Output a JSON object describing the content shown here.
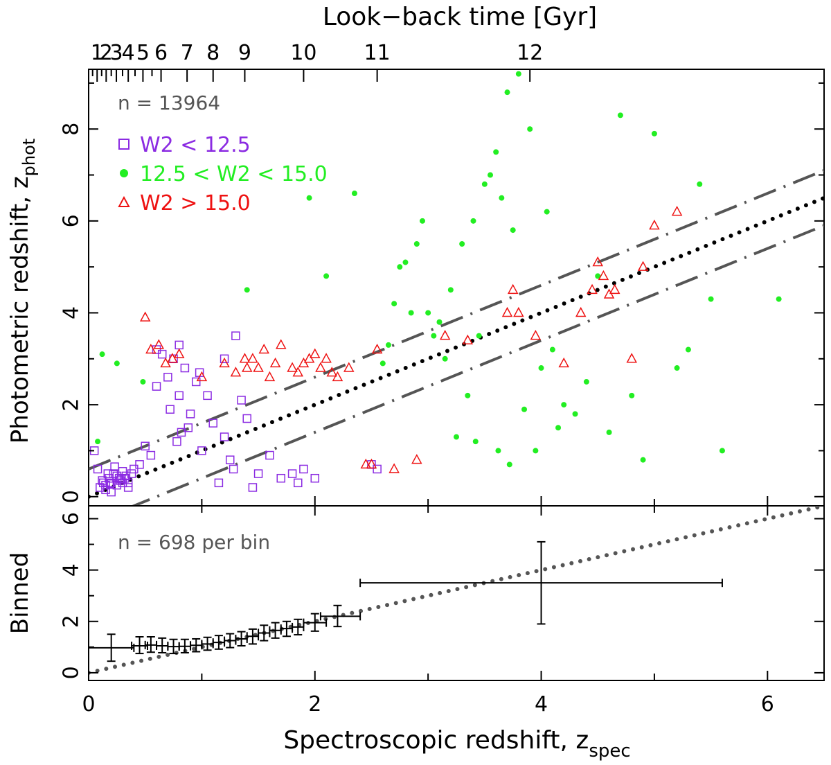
{
  "chart_data": [
    {
      "panel": "main",
      "type": "scatter",
      "xlabel": "Spectroscopic redshift, z",
      "xlabel_sub": "spec",
      "ylabel": "Photometric redshift, z",
      "ylabel_sub": "phot",
      "top_axis_label": "Look−back time [Gyr]",
      "top_axis_ticks": [
        {
          "label": "1",
          "z": 0.075
        },
        {
          "label": "2",
          "z": 0.155
        },
        {
          "label": "3",
          "z": 0.245
        },
        {
          "label": "4",
          "z": 0.35
        },
        {
          "label": "5",
          "z": 0.48
        },
        {
          "label": "6",
          "z": 0.64
        },
        {
          "label": "7",
          "z": 0.87
        },
        {
          "label": "8",
          "z": 1.1
        },
        {
          "label": "9",
          "z": 1.38
        },
        {
          "label": "10",
          "z": 1.9
        },
        {
          "label": "11",
          "z": 2.55
        },
        {
          "label": "12",
          "z": 3.9
        }
      ],
      "top_minor_z": [
        0.035,
        0.115,
        0.2,
        0.3,
        0.41,
        0.56
      ],
      "xlim": [
        0,
        6.5
      ],
      "ylim": [
        -0.2,
        9.3
      ],
      "xticks": [
        0,
        2,
        4,
        6
      ],
      "yticks": [
        0,
        2,
        4,
        6,
        8
      ],
      "ytick_labels": [
        "0",
        "2",
        "4",
        "6",
        "8"
      ],
      "annotation": "n = 13964",
      "legend": [
        {
          "label": "W2 < 12.5",
          "marker": "square",
          "color": "#8b2be2"
        },
        {
          "label": "12.5 < W2 < 15.0",
          "marker": "circle",
          "color": "#22ee22"
        },
        {
          "label": "W2 > 15.0",
          "marker": "triangle",
          "color": "#ee1111"
        }
      ],
      "lines": [
        {
          "name": "one-to-one",
          "style": "dotted",
          "color": "#000000",
          "slope": 1,
          "intercept": 0
        },
        {
          "name": "upper-bound",
          "style": "dash-dot",
          "color": "#555555",
          "slope": 1,
          "intercept": 0.6
        },
        {
          "name": "lower-bound",
          "style": "dash-dot",
          "color": "#555555",
          "slope": 1,
          "intercept": -0.6
        }
      ],
      "series": [
        {
          "name": "W2 < 12.5",
          "x": [
            0.1,
            0.12,
            0.15,
            0.18,
            0.2,
            0.22,
            0.25,
            0.28,
            0.3,
            0.32,
            0.35,
            0.38,
            0.4,
            0.15,
            0.2,
            0.25,
            0.3,
            0.35,
            0.17,
            0.23,
            0.27,
            0.33,
            0.13,
            0.19,
            0.29,
            0.6,
            0.7,
            0.75,
            0.8,
            0.85,
            0.9,
            0.95,
            0.65,
            0.78,
            0.88,
            1.0,
            1.1,
            1.2,
            1.25,
            1.3,
            1.35,
            1.4,
            1.5,
            1.6,
            1.7,
            1.9,
            0.5,
            0.55,
            0.45,
            1.15,
            1.05,
            0.98,
            0.72,
            0.82,
            1.28,
            1.45,
            1.8,
            1.85,
            2.0,
            2.5,
            2.55,
            0.05,
            0.08,
            0.6,
            0.8,
            1.2
          ],
          "y": [
            0.2,
            0.35,
            0.25,
            0.4,
            0.3,
            0.5,
            0.45,
            0.35,
            0.55,
            0.4,
            0.3,
            0.5,
            0.6,
            0.15,
            0.1,
            0.25,
            0.3,
            0.2,
            0.5,
            0.65,
            0.4,
            0.45,
            0.3,
            0.28,
            0.38,
            2.4,
            2.6,
            3.0,
            2.2,
            2.8,
            1.8,
            2.5,
            3.1,
            1.2,
            1.5,
            1.0,
            1.6,
            1.3,
            0.8,
            3.5,
            2.1,
            1.7,
            0.5,
            0.9,
            0.4,
            0.6,
            1.1,
            0.9,
            0.7,
            0.3,
            2.2,
            2.7,
            1.9,
            1.4,
            0.6,
            0.2,
            0.5,
            0.3,
            0.4,
            0.7,
            0.6,
            1.0,
            0.6,
            3.2,
            3.3,
            3.0
          ]
        },
        {
          "name": "12.5 < W2 < 15.0",
          "x": [
            0.25,
            0.48,
            0.08,
            0.12,
            2.35,
            1.4,
            2.1,
            2.7,
            2.75,
            3.0,
            3.1,
            3.2,
            3.3,
            3.4,
            3.5,
            3.6,
            3.7,
            3.8,
            3.9,
            3.65,
            3.75,
            3.55,
            3.45,
            3.35,
            3.25,
            3.15,
            4.0,
            4.1,
            4.2,
            4.3,
            4.4,
            4.5,
            4.6,
            4.7,
            4.8,
            4.9,
            5.0,
            5.2,
            5.3,
            5.4,
            5.5,
            5.6,
            6.1,
            3.85,
            3.95,
            4.05,
            4.15,
            3.72,
            3.62,
            3.42,
            2.9,
            2.95,
            1.95,
            2.8,
            2.65,
            2.85,
            3.05,
            2.6
          ],
          "y": [
            2.9,
            2.5,
            1.2,
            3.1,
            6.6,
            4.5,
            4.8,
            4.2,
            5.0,
            4.0,
            3.8,
            4.5,
            5.5,
            6.0,
            6.8,
            7.5,
            8.8,
            9.2,
            8.0,
            6.5,
            5.8,
            7.0,
            3.5,
            2.2,
            1.3,
            3.0,
            2.8,
            3.2,
            2.0,
            1.8,
            2.5,
            4.8,
            1.4,
            8.3,
            2.2,
            0.8,
            7.9,
            2.8,
            3.2,
            6.8,
            4.3,
            1.0,
            4.3,
            1.9,
            1.0,
            6.2,
            1.5,
            0.7,
            1.0,
            1.2,
            5.5,
            6.0,
            6.5,
            5.1,
            3.3,
            4.0,
            3.5,
            2.9
          ]
        },
        {
          "name": "W2 > 15.0",
          "x": [
            0.5,
            0.55,
            0.62,
            0.68,
            0.74,
            0.8,
            1.0,
            1.2,
            1.3,
            1.38,
            1.4,
            1.45,
            1.5,
            1.55,
            1.6,
            1.65,
            1.7,
            1.8,
            1.85,
            1.9,
            1.95,
            2.0,
            2.05,
            2.1,
            2.15,
            2.2,
            2.3,
            2.5,
            2.55,
            2.9,
            3.15,
            3.35,
            3.7,
            3.75,
            3.8,
            3.95,
            4.2,
            4.35,
            4.45,
            4.5,
            4.55,
            4.6,
            4.65,
            4.8,
            4.9,
            5.0,
            5.2,
            2.45,
            2.7
          ],
          "y": [
            3.9,
            3.2,
            3.3,
            2.9,
            3.0,
            3.1,
            2.6,
            2.9,
            2.7,
            3.0,
            2.8,
            3.0,
            2.8,
            3.2,
            2.6,
            2.9,
            3.3,
            2.8,
            2.7,
            2.9,
            3.0,
            3.1,
            2.8,
            3.0,
            2.7,
            2.6,
            2.8,
            0.7,
            3.2,
            0.8,
            3.5,
            3.4,
            4.0,
            4.5,
            4.0,
            3.5,
            2.9,
            4.0,
            4.5,
            5.1,
            4.8,
            4.4,
            4.5,
            3.0,
            5.0,
            5.9,
            6.2,
            0.7,
            0.6
          ]
        }
      ]
    },
    {
      "panel": "binned",
      "type": "errorbar",
      "ylabel": "Binned",
      "xlim": [
        0,
        6.5
      ],
      "ylim": [
        -0.3,
        6.5
      ],
      "xticks": [
        0,
        2,
        4,
        6
      ],
      "xtick_labels": [
        "0",
        "2",
        "4",
        "6"
      ],
      "yticks": [
        0,
        2,
        4,
        6
      ],
      "ytick_labels": [
        "0",
        "2",
        "4",
        "6"
      ],
      "annotation": "n = 698 per bin",
      "reference_line": {
        "style": "dotted",
        "color": "#555555",
        "slope": 1,
        "intercept": 0
      },
      "points": [
        {
          "x": 0.2,
          "y": 0.97,
          "xlo": 0.0,
          "xhi": 0.4,
          "ylo": 0.45,
          "yhi": 1.5
        },
        {
          "x": 0.45,
          "y": 1.05,
          "xlo": 0.38,
          "xhi": 0.52,
          "ylo": 0.75,
          "yhi": 1.4
        },
        {
          "x": 0.55,
          "y": 1.08,
          "xlo": 0.5,
          "xhi": 0.6,
          "ylo": 0.8,
          "yhi": 1.4
        },
        {
          "x": 0.65,
          "y": 1.05,
          "xlo": 0.6,
          "xhi": 0.7,
          "ylo": 0.78,
          "yhi": 1.35
        },
        {
          "x": 0.75,
          "y": 1.02,
          "xlo": 0.7,
          "xhi": 0.8,
          "ylo": 0.75,
          "yhi": 1.3
        },
        {
          "x": 0.85,
          "y": 1.03,
          "xlo": 0.8,
          "xhi": 0.9,
          "ylo": 0.78,
          "yhi": 1.3
        },
        {
          "x": 0.95,
          "y": 1.07,
          "xlo": 0.9,
          "xhi": 1.0,
          "ylo": 0.82,
          "yhi": 1.32
        },
        {
          "x": 1.05,
          "y": 1.12,
          "xlo": 1.0,
          "xhi": 1.1,
          "ylo": 0.88,
          "yhi": 1.38
        },
        {
          "x": 1.15,
          "y": 1.18,
          "xlo": 1.1,
          "xhi": 1.2,
          "ylo": 0.92,
          "yhi": 1.45
        },
        {
          "x": 1.25,
          "y": 1.25,
          "xlo": 1.2,
          "xhi": 1.3,
          "ylo": 0.98,
          "yhi": 1.52
        },
        {
          "x": 1.35,
          "y": 1.32,
          "xlo": 1.3,
          "xhi": 1.4,
          "ylo": 1.05,
          "yhi": 1.6
        },
        {
          "x": 1.45,
          "y": 1.42,
          "xlo": 1.4,
          "xhi": 1.5,
          "ylo": 1.12,
          "yhi": 1.7
        },
        {
          "x": 1.55,
          "y": 1.55,
          "xlo": 1.5,
          "xhi": 1.6,
          "ylo": 1.25,
          "yhi": 1.85
        },
        {
          "x": 1.65,
          "y": 1.65,
          "xlo": 1.6,
          "xhi": 1.7,
          "ylo": 1.35,
          "yhi": 1.95
        },
        {
          "x": 1.75,
          "y": 1.72,
          "xlo": 1.7,
          "xhi": 1.8,
          "ylo": 1.42,
          "yhi": 2.0
        },
        {
          "x": 1.85,
          "y": 1.78,
          "xlo": 1.8,
          "xhi": 1.9,
          "ylo": 1.48,
          "yhi": 2.08
        },
        {
          "x": 2.0,
          "y": 1.95,
          "xlo": 1.9,
          "xhi": 2.1,
          "ylo": 1.62,
          "yhi": 2.3
        },
        {
          "x": 2.2,
          "y": 2.2,
          "xlo": 2.05,
          "xhi": 2.4,
          "ylo": 1.8,
          "yhi": 2.62
        },
        {
          "x": 4.0,
          "y": 3.5,
          "xlo": 2.4,
          "xhi": 5.6,
          "ylo": 1.9,
          "yhi": 5.1
        }
      ]
    }
  ]
}
